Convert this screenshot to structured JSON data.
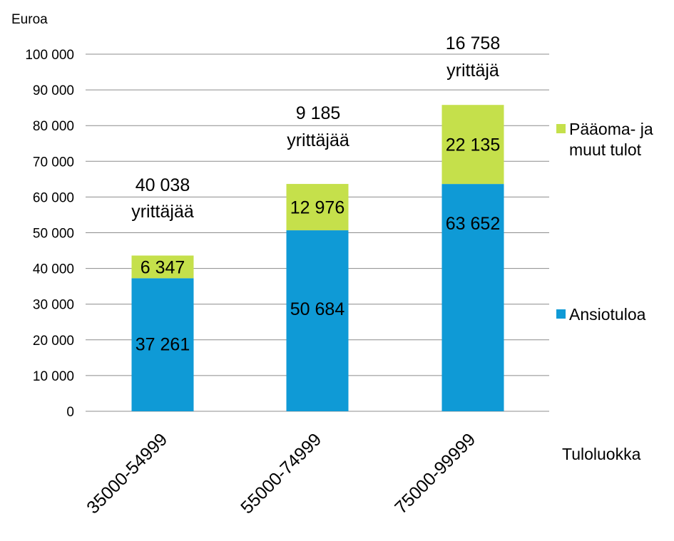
{
  "chart_data": {
    "type": "bar",
    "stacked": true,
    "unit_label": "Euroa",
    "xlabel": "Tuloluokka",
    "categories": [
      "35000-54999",
      "55000-74999",
      "75000-99999"
    ],
    "series": [
      {
        "name": "Ansiotuloa",
        "color": "#0f9ad6",
        "values": [
          37261,
          50684,
          63652
        ],
        "labels": [
          "37 261",
          "50 684",
          "63 652"
        ]
      },
      {
        "name": "Pääoma- ja muut tulot",
        "legend_lines": [
          "Pääoma- ja",
          "muut tulot"
        ],
        "color": "#c5e04b",
        "values": [
          6347,
          12976,
          22135
        ],
        "labels": [
          "6 347",
          "12 976",
          "22 135"
        ]
      }
    ],
    "bar_annotations": [
      {
        "count": "40 038",
        "text": "yrittäjää"
      },
      {
        "count": "9 185",
        "text": "yrittäjää"
      },
      {
        "count": "16 758",
        "text": "yrittäjä"
      }
    ],
    "ylim": [
      0,
      100000
    ],
    "yticks": [
      0,
      10000,
      20000,
      30000,
      40000,
      50000,
      60000,
      70000,
      80000,
      90000,
      100000
    ],
    "ytick_labels": [
      "0",
      "10 000",
      "20 000",
      "30 000",
      "40 000",
      "50 000",
      "60 000",
      "70 000",
      "80 000",
      "90 000",
      "100 000"
    ],
    "grid": true,
    "legend_position": "right"
  }
}
